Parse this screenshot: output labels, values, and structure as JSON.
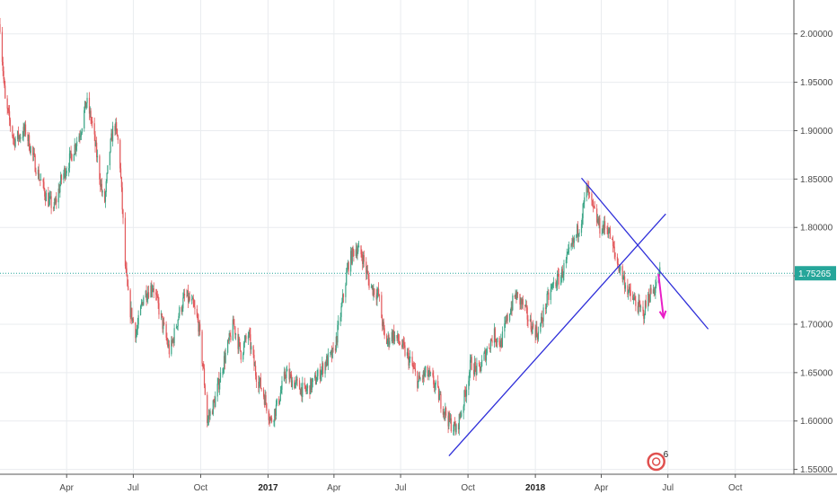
{
  "chart_data": {
    "type": "candlestick",
    "y_axis": {
      "position": "right",
      "range": [
        1.545,
        2.035
      ],
      "ticks": [
        "2.00000",
        "1.95000",
        "1.90000",
        "1.85000",
        "1.80000",
        "1.75000",
        "1.70000",
        "1.65000",
        "1.60000",
        "1.55000"
      ],
      "tick_values": [
        2.0,
        1.95,
        1.9,
        1.85,
        1.8,
        1.75,
        1.7,
        1.65,
        1.6,
        1.55
      ]
    },
    "x_axis": {
      "range": [
        "2016-01-01",
        "2018-12-20"
      ],
      "ticks": [
        {
          "label": "Apr",
          "date": "2016-04-01",
          "bold": false
        },
        {
          "label": "Jul",
          "date": "2016-07-01",
          "bold": false
        },
        {
          "label": "Oct",
          "date": "2016-10-01",
          "bold": false
        },
        {
          "label": "2017",
          "date": "2017-01-01",
          "bold": true
        },
        {
          "label": "Apr",
          "date": "2017-04-01",
          "bold": false
        },
        {
          "label": "Jul",
          "date": "2017-07-01",
          "bold": false
        },
        {
          "label": "Oct",
          "date": "2017-10-01",
          "bold": false
        },
        {
          "label": "2018",
          "date": "2018-01-01",
          "bold": true
        },
        {
          "label": "Apr",
          "date": "2018-04-01",
          "bold": false
        },
        {
          "label": "Jul",
          "date": "2018-07-01",
          "bold": false
        },
        {
          "label": "Oct",
          "date": "2018-10-01",
          "bold": false
        }
      ]
    },
    "grid": true,
    "up_color": "#3ba586",
    "down_color": "#e2575a",
    "current_price": {
      "label": "1.75265",
      "value": 1.75265,
      "color": "#26a69a"
    },
    "price_path": [
      [
        "2016-01-01",
        2.01
      ],
      [
        "2016-01-08",
        1.93
      ],
      [
        "2016-01-20",
        1.89
      ],
      [
        "2016-02-05",
        1.9
      ],
      [
        "2016-02-20",
        1.86
      ],
      [
        "2016-03-05",
        1.83
      ],
      [
        "2016-03-15",
        1.82
      ],
      [
        "2016-03-25",
        1.85
      ],
      [
        "2016-04-05",
        1.87
      ],
      [
        "2016-04-20",
        1.9
      ],
      [
        "2016-04-28",
        1.93
      ],
      [
        "2016-05-05",
        1.91
      ],
      [
        "2016-05-15",
        1.86
      ],
      [
        "2016-05-22",
        1.82
      ],
      [
        "2016-05-30",
        1.88
      ],
      [
        "2016-06-05",
        1.91
      ],
      [
        "2016-06-12",
        1.88
      ],
      [
        "2016-06-20",
        1.76
      ],
      [
        "2016-06-25",
        1.72
      ],
      [
        "2016-07-05",
        1.69
      ],
      [
        "2016-07-15",
        1.73
      ],
      [
        "2016-07-28",
        1.74
      ],
      [
        "2016-08-10",
        1.7
      ],
      [
        "2016-08-20",
        1.67
      ],
      [
        "2016-09-01",
        1.71
      ],
      [
        "2016-09-10",
        1.73
      ],
      [
        "2016-09-20",
        1.72
      ],
      [
        "2016-09-28",
        1.7
      ],
      [
        "2016-10-05",
        1.65
      ],
      [
        "2016-10-10",
        1.6
      ],
      [
        "2016-10-20",
        1.62
      ],
      [
        "2016-11-01",
        1.66
      ],
      [
        "2016-11-15",
        1.7
      ],
      [
        "2016-11-25",
        1.67
      ],
      [
        "2016-12-05",
        1.69
      ],
      [
        "2016-12-15",
        1.65
      ],
      [
        "2016-12-25",
        1.63
      ],
      [
        "2017-01-05",
        1.6
      ],
      [
        "2017-01-15",
        1.62
      ],
      [
        "2017-01-25",
        1.65
      ],
      [
        "2017-02-05",
        1.64
      ],
      [
        "2017-02-20",
        1.63
      ],
      [
        "2017-03-05",
        1.64
      ],
      [
        "2017-03-20",
        1.66
      ],
      [
        "2017-04-01",
        1.67
      ],
      [
        "2017-04-10",
        1.71
      ],
      [
        "2017-04-20",
        1.76
      ],
      [
        "2017-04-30",
        1.78
      ],
      [
        "2017-05-10",
        1.77
      ],
      [
        "2017-05-20",
        1.74
      ],
      [
        "2017-06-01",
        1.73
      ],
      [
        "2017-06-10",
        1.68
      ],
      [
        "2017-06-20",
        1.69
      ],
      [
        "2017-07-01",
        1.68
      ],
      [
        "2017-07-15",
        1.66
      ],
      [
        "2017-07-25",
        1.64
      ],
      [
        "2017-08-05",
        1.65
      ],
      [
        "2017-08-15",
        1.64
      ],
      [
        "2017-08-25",
        1.62
      ],
      [
        "2017-09-05",
        1.6
      ],
      [
        "2017-09-15",
        1.59
      ],
      [
        "2017-09-25",
        1.62
      ],
      [
        "2017-10-05",
        1.66
      ],
      [
        "2017-10-15",
        1.65
      ],
      [
        "2017-10-25",
        1.67
      ],
      [
        "2017-11-05",
        1.69
      ],
      [
        "2017-11-15",
        1.68
      ],
      [
        "2017-11-25",
        1.71
      ],
      [
        "2017-12-05",
        1.73
      ],
      [
        "2017-12-15",
        1.72
      ],
      [
        "2017-12-25",
        1.7
      ],
      [
        "2018-01-05",
        1.69
      ],
      [
        "2018-01-15",
        1.72
      ],
      [
        "2018-01-25",
        1.74
      ],
      [
        "2018-02-05",
        1.75
      ],
      [
        "2018-02-15",
        1.77
      ],
      [
        "2018-02-25",
        1.79
      ],
      [
        "2018-03-05",
        1.81
      ],
      [
        "2018-03-12",
        1.84
      ],
      [
        "2018-03-20",
        1.82
      ],
      [
        "2018-03-30",
        1.8
      ],
      [
        "2018-04-10",
        1.8
      ],
      [
        "2018-04-20",
        1.77
      ],
      [
        "2018-04-30",
        1.75
      ],
      [
        "2018-05-10",
        1.73
      ],
      [
        "2018-05-20",
        1.72
      ],
      [
        "2018-05-28",
        1.71
      ],
      [
        "2018-06-05",
        1.73
      ],
      [
        "2018-06-15",
        1.74
      ],
      [
        "2018-06-20",
        1.75265
      ]
    ],
    "annotations": {
      "trendlines": [
        {
          "color": "#2f2fd9",
          "from": [
            "2017-09-05",
            1.564
          ],
          "to": [
            "2018-06-28",
            1.814
          ]
        },
        {
          "color": "#2f2fd9",
          "from": [
            "2018-03-05",
            1.851
          ],
          "to": [
            "2018-08-25",
            1.695
          ]
        }
      ],
      "arrow": {
        "color": "#e91ec7",
        "from": [
          "2018-06-18",
          1.752
        ],
        "to": [
          "2018-06-25",
          1.707
        ]
      },
      "badge": {
        "count": "6",
        "color": "#e0504f"
      }
    }
  }
}
